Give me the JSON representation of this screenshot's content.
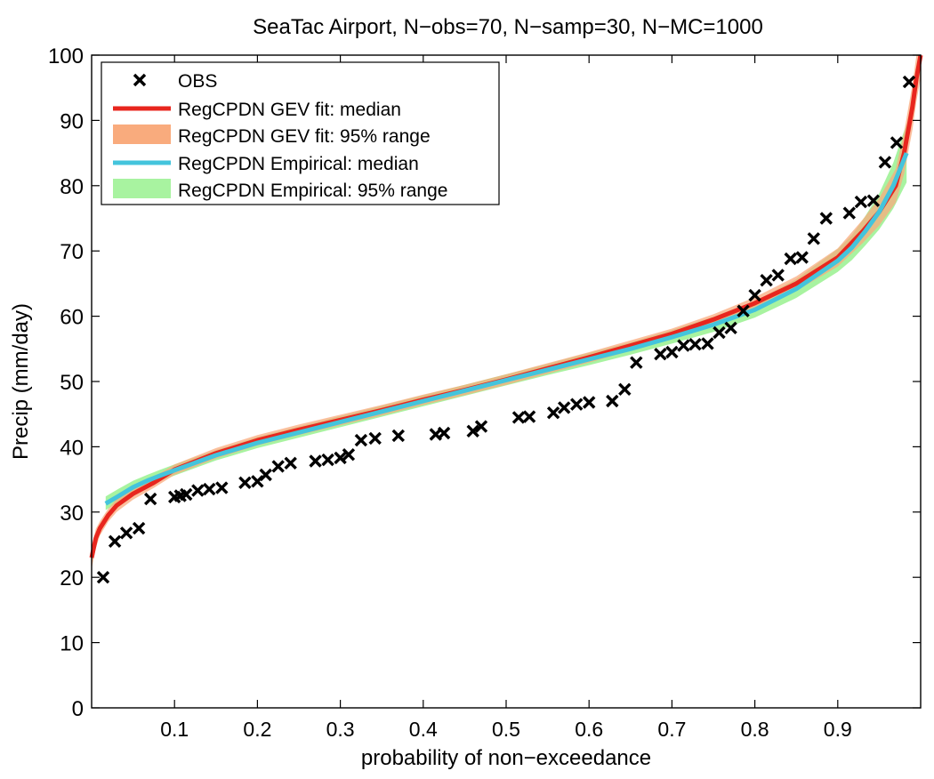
{
  "chart_data": {
    "type": "line",
    "title": "SeaTac Airport, N−obs=70, N−samp=30, N−MC=1000",
    "xlabel": "probability of non−exceedance",
    "ylabel": "Precip (mm/day)",
    "xlim": [
      0,
      1
    ],
    "ylim": [
      0,
      100
    ],
    "xticks": [
      0.1,
      0.2,
      0.3,
      0.4,
      0.5,
      0.6,
      0.7,
      0.8,
      0.9
    ],
    "xtick_labels": [
      "0.1",
      "0.2",
      "0.3",
      "0.4",
      "0.5",
      "0.6",
      "0.7",
      "0.8",
      "0.9"
    ],
    "yticks": [
      0,
      10,
      20,
      30,
      40,
      50,
      60,
      70,
      80,
      90,
      100
    ],
    "ytick_labels": [
      "0",
      "10",
      "20",
      "30",
      "40",
      "50",
      "60",
      "70",
      "80",
      "90",
      "100"
    ],
    "grid": false,
    "legend_position": "top-left",
    "colors": {
      "obs": "#000000",
      "gev_median": "#e8261e",
      "gev_range": "#f9ab7d",
      "emp_median": "#44c4dc",
      "emp_range": "#a8f3a0"
    },
    "series": [
      {
        "name": "OBS",
        "kind": "scatter",
        "marker": "x",
        "x": [
          0.014,
          0.028,
          0.042,
          0.057,
          0.071,
          0.1,
          0.107,
          0.114,
          0.128,
          0.142,
          0.157,
          0.185,
          0.2,
          0.21,
          0.225,
          0.24,
          0.27,
          0.285,
          0.3,
          0.31,
          0.325,
          0.342,
          0.37,
          0.415,
          0.425,
          0.46,
          0.47,
          0.515,
          0.528,
          0.557,
          0.57,
          0.585,
          0.6,
          0.628,
          0.643,
          0.657,
          0.686,
          0.7,
          0.714,
          0.728,
          0.743,
          0.757,
          0.771,
          0.786,
          0.8,
          0.814,
          0.828,
          0.843,
          0.857,
          0.871,
          0.886,
          0.914,
          0.928,
          0.943,
          0.957,
          0.971,
          0.986
        ],
        "y": [
          20.0,
          25.5,
          26.8,
          27.5,
          32.0,
          32.3,
          32.5,
          32.7,
          33.3,
          33.5,
          33.7,
          34.5,
          34.7,
          35.7,
          37.0,
          37.5,
          37.8,
          38.0,
          38.3,
          38.8,
          41.0,
          41.3,
          41.7,
          41.9,
          42.1,
          42.4,
          43.1,
          44.5,
          44.6,
          45.2,
          46.0,
          46.5,
          46.8,
          47.0,
          48.8,
          52.9,
          54.2,
          54.5,
          55.5,
          55.7,
          55.8,
          57.5,
          58.2,
          60.8,
          63.2,
          65.5,
          66.3,
          68.8,
          69.0,
          71.9,
          75.0,
          75.8,
          77.5,
          77.7,
          83.6,
          86.6,
          95.9
        ]
      },
      {
        "name": "RegCPDN GEV fit: median",
        "kind": "line",
        "x": [
          0.0,
          0.005,
          0.01,
          0.02,
          0.03,
          0.05,
          0.075,
          0.1,
          0.15,
          0.2,
          0.25,
          0.3,
          0.35,
          0.4,
          0.45,
          0.5,
          0.55,
          0.6,
          0.65,
          0.7,
          0.75,
          0.8,
          0.85,
          0.9,
          0.93,
          0.95,
          0.97,
          0.98,
          0.99,
          0.995,
          1.0
        ],
        "y": [
          23.0,
          26.0,
          27.5,
          29.5,
          31.0,
          32.8,
          34.5,
          36.5,
          39.0,
          41.0,
          42.6,
          44.1,
          45.6,
          47.2,
          48.7,
          50.3,
          52.0,
          53.7,
          55.5,
          57.3,
          59.5,
          62.0,
          65.0,
          69.0,
          73.0,
          76.0,
          80.0,
          85.0,
          92.0,
          96.5,
          100.0
        ]
      },
      {
        "name": "RegCPDN GEV fit: 95% range",
        "kind": "band",
        "x": [
          0.0,
          0.005,
          0.01,
          0.02,
          0.03,
          0.05,
          0.075,
          0.1,
          0.15,
          0.2,
          0.25,
          0.3,
          0.35,
          0.4,
          0.45,
          0.5,
          0.55,
          0.6,
          0.65,
          0.7,
          0.75,
          0.8,
          0.85,
          0.9,
          0.93,
          0.95,
          0.97,
          0.98,
          0.99,
          0.995,
          1.0
        ],
        "lower": [
          21.3,
          24.5,
          26.4,
          28.5,
          30.0,
          31.9,
          33.7,
          35.7,
          38.2,
          40.2,
          41.8,
          43.3,
          44.8,
          46.4,
          47.9,
          49.5,
          51.2,
          52.9,
          54.7,
          56.5,
          58.7,
          61.1,
          63.9,
          67.6,
          71.2,
          73.9,
          77.4,
          81.8,
          88.5,
          93.0,
          96.5
        ],
        "upper": [
          24.6,
          27.4,
          28.6,
          30.5,
          32.0,
          33.8,
          35.4,
          37.3,
          39.8,
          41.8,
          43.4,
          44.9,
          46.4,
          48.0,
          49.5,
          51.1,
          52.8,
          54.5,
          56.3,
          58.1,
          60.3,
          62.9,
          66.1,
          70.4,
          74.8,
          78.1,
          82.6,
          88.2,
          95.5,
          100.0,
          100.0
        ]
      },
      {
        "name": "RegCPDN Empirical: median",
        "kind": "line",
        "x": [
          0.017,
          0.033,
          0.05,
          0.067,
          0.083,
          0.1,
          0.15,
          0.2,
          0.25,
          0.3,
          0.35,
          0.4,
          0.45,
          0.5,
          0.55,
          0.6,
          0.65,
          0.7,
          0.75,
          0.8,
          0.85,
          0.9,
          0.917,
          0.933,
          0.95,
          0.967,
          0.983
        ],
        "y": [
          31.3,
          32.5,
          33.8,
          34.8,
          35.6,
          36.4,
          38.7,
          40.6,
          42.2,
          43.8,
          45.4,
          47.0,
          48.6,
          50.2,
          51.8,
          53.4,
          55.0,
          56.8,
          58.7,
          61.0,
          64.2,
          68.5,
          70.5,
          73.0,
          76.0,
          80.0,
          85.0
        ]
      },
      {
        "name": "RegCPDN Empirical: 95% range",
        "kind": "band",
        "x": [
          0.017,
          0.033,
          0.05,
          0.067,
          0.083,
          0.1,
          0.15,
          0.2,
          0.25,
          0.3,
          0.35,
          0.4,
          0.45,
          0.5,
          0.55,
          0.6,
          0.65,
          0.7,
          0.75,
          0.8,
          0.85,
          0.9,
          0.917,
          0.933,
          0.95,
          0.967,
          0.983
        ],
        "lower": [
          30.3,
          31.6,
          32.9,
          34.0,
          34.8,
          35.6,
          37.9,
          39.8,
          41.4,
          43.0,
          44.6,
          46.2,
          47.8,
          49.4,
          51.0,
          52.5,
          54.1,
          55.8,
          57.6,
          59.8,
          62.8,
          66.8,
          68.6,
          70.8,
          73.3,
          76.5,
          80.5
        ],
        "upper": [
          32.4,
          33.6,
          34.8,
          35.7,
          36.5,
          37.3,
          39.5,
          41.5,
          43.1,
          44.7,
          46.3,
          47.9,
          49.5,
          51.1,
          52.7,
          54.4,
          56.0,
          57.9,
          59.9,
          62.3,
          65.7,
          70.3,
          72.4,
          75.3,
          78.8,
          83.5,
          89.5
        ]
      }
    ]
  }
}
